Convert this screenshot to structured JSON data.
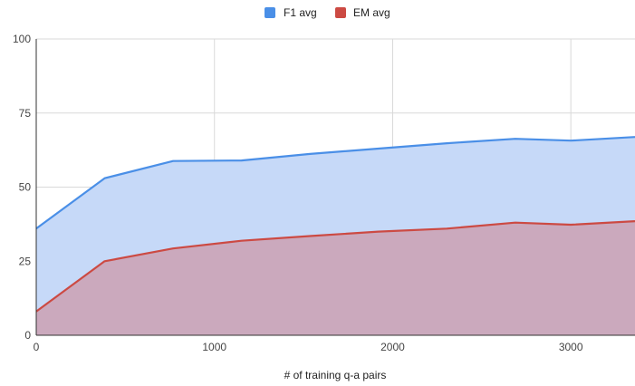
{
  "chart_data": {
    "type": "area",
    "title": "",
    "xlabel": "# of training q-a pairs",
    "ylabel": "",
    "xlim": [
      0,
      3360
    ],
    "ylim": [
      0,
      100
    ],
    "x_ticks": [
      0,
      1000,
      2000,
      3000
    ],
    "y_ticks": [
      0,
      25,
      50,
      75,
      100
    ],
    "grid": true,
    "legend_position": "top",
    "x": [
      0,
      384,
      768,
      1152,
      1536,
      1920,
      2304,
      2688,
      3000,
      3360
    ],
    "series": [
      {
        "name": "F1 avg",
        "color": "#4a8fe7",
        "fill": "#c6d9f8",
        "values": [
          36,
          53,
          58.8,
          59,
          61.2,
          63,
          64.8,
          66.3,
          65.7,
          66.9
        ]
      },
      {
        "name": "EM avg",
        "color": "#cc4a43",
        "fill": "#cba9bd",
        "values": [
          8,
          25,
          29.3,
          31.9,
          33.5,
          35,
          36,
          38,
          37.3,
          38.5
        ]
      }
    ]
  }
}
